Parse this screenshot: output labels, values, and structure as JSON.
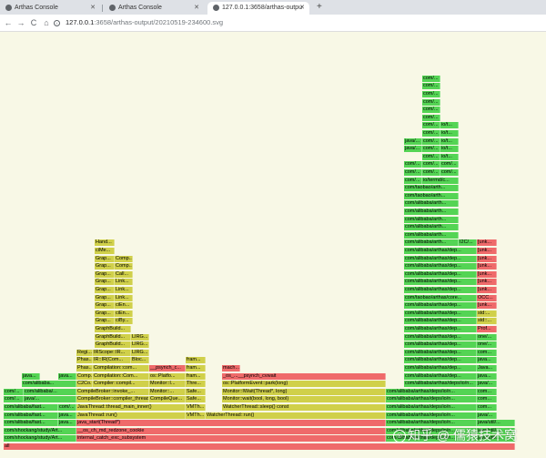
{
  "browser": {
    "tabs": [
      {
        "title": "Arthas Console",
        "active": false
      },
      {
        "title": "Arthas Console",
        "active": false
      },
      {
        "title": "127.0.0.1:3658/arthas-output/20210519-234600.svg",
        "active": true
      }
    ],
    "new_tab": "+",
    "nav": {
      "back": "←",
      "forward": "→",
      "reload": "C",
      "home": "⌂"
    },
    "url_host": "127.0.0.1",
    "url_rest": ":3658/arthas-output/20210519-234600.svg"
  },
  "flamegraph": {
    "colors": {
      "green": "#54d454",
      "yellow": "#d0d04a",
      "red": "#ef6a6a",
      "salmon": "#e06060"
    },
    "frames": [
      {
        "l": "all",
        "c": "red"
      },
      {
        "l": "com/shockang/study/Art...",
        "c": "green"
      },
      {
        "l": "internal_catch_exc_subsystem",
        "c": "red"
      },
      {
        "l": "com/alibaba/arthas/deps/io/n...",
        "c": "green"
      },
      {
        "l": "java/util/...",
        "c": "green"
      },
      {
        "l": "com/shockang/study/Art...",
        "c": "green"
      },
      {
        "l": "__os_ch_md_redzone_cookie",
        "c": "red"
      },
      {
        "l": "com/alibaba/arthas/deps/io/n...",
        "c": "green"
      },
      {
        "l": "java/util/...",
        "c": "green"
      },
      {
        "l": "com/alibaba/fast...",
        "c": "green"
      },
      {
        "l": "java...",
        "c": "green"
      },
      {
        "l": "java_start(Thread*)",
        "c": "red"
      },
      {
        "l": "com/alibaba/arthas/deps/io/n...",
        "c": "green"
      },
      {
        "l": "java/util/...",
        "c": "green"
      },
      {
        "l": "com/alibaba/fast...",
        "c": "green"
      },
      {
        "l": "java...",
        "c": "green"
      },
      {
        "l": "JavaThread::run()",
        "c": "yellow"
      },
      {
        "l": "VMTh...",
        "c": "yellow"
      },
      {
        "l": "WatcherThread::run()",
        "c": "yellow"
      },
      {
        "l": "com/alibaba/arthas/deps/io/n...",
        "c": "green"
      },
      {
        "l": "java/...",
        "c": "green"
      },
      {
        "l": "com/alibaba/fast...",
        "c": "green"
      },
      {
        "l": "com/...",
        "c": "green"
      },
      {
        "l": "JavaThread::thread_main_inner()",
        "c": "yellow"
      },
      {
        "l": "VMTh...",
        "c": "yellow"
      },
      {
        "l": "WatcherThread::sleep() const",
        "c": "yellow"
      },
      {
        "l": "com/alibaba/arthas/deps/io/n...",
        "c": "green"
      },
      {
        "l": "com...",
        "c": "green"
      },
      {
        "l": "com/...",
        "c": "green"
      },
      {
        "l": "java/...",
        "c": "green"
      },
      {
        "l": "CompileBroker::compiler_thread_loo...",
        "c": "yellow"
      },
      {
        "l": "CompileQue...",
        "c": "yellow"
      },
      {
        "l": "Safe...",
        "c": "yellow"
      },
      {
        "l": "Monitor::wait(bool, long, bool)",
        "c": "yellow"
      },
      {
        "l": "com/alibaba/arthas/deps/io/n...",
        "c": "green"
      },
      {
        "l": "com...",
        "c": "green"
      },
      {
        "l": "com/...",
        "c": "green"
      },
      {
        "l": "com/alibaba/...",
        "c": "green"
      },
      {
        "l": "CompileBroker::invoke_...",
        "c": "yellow"
      },
      {
        "l": "Monitor::...",
        "c": "yellow"
      },
      {
        "l": "Safe...",
        "c": "yellow"
      },
      {
        "l": "Monitor::IWait(Thread*, long)",
        "c": "yellow"
      },
      {
        "l": "com/alibaba/arthas/deps/io/n...",
        "c": "green"
      },
      {
        "l": "com...",
        "c": "green"
      },
      {
        "l": "com/alibaba...",
        "c": "green"
      },
      {
        "l": "C2Co...",
        "c": "yellow"
      },
      {
        "l": "Compiler::compil...",
        "c": "yellow"
      },
      {
        "l": "Monitor::I...",
        "c": "yellow"
      },
      {
        "l": "Thre...",
        "c": "yellow"
      },
      {
        "l": "os::PlatformEvent::park(long)",
        "c": "yellow"
      },
      {
        "l": "com/alibaba/arthas/deps/io/n...",
        "c": "green"
      },
      {
        "l": "java/...",
        "c": "green"
      },
      {
        "l": "java...",
        "c": "green"
      },
      {
        "l": "java...",
        "c": "green"
      },
      {
        "l": "Comp...",
        "c": "yellow"
      },
      {
        "l": "Compilation::Com...",
        "c": "yellow"
      },
      {
        "l": "os::Platfo...",
        "c": "yellow"
      },
      {
        "l": "fram...",
        "c": "yellow"
      },
      {
        "l": "_os_...__psynch_cvwait",
        "c": "red"
      },
      {
        "l": "com/alibaba/arthas/dep...",
        "c": "green"
      },
      {
        "l": "java...",
        "c": "green"
      },
      {
        "l": "Phas...",
        "c": "yellow"
      },
      {
        "l": "Compilation::com...",
        "c": "yellow"
      },
      {
        "l": "__psynch_c...",
        "c": "red"
      },
      {
        "l": "fram...",
        "c": "yellow"
      },
      {
        "l": "mach...",
        "c": "red"
      },
      {
        "l": "com/alibaba/arthas/dep...",
        "c": "green"
      },
      {
        "l": "Java...",
        "c": "green"
      },
      {
        "l": "Phas...",
        "c": "yellow"
      },
      {
        "l": "IR::IR(Com...",
        "c": "yellow"
      },
      {
        "l": "Bloc...",
        "c": "yellow"
      },
      {
        "l": "fram...",
        "c": "yellow"
      },
      {
        "l": "com/alibaba/arthas/dep...",
        "c": "green"
      },
      {
        "l": "java...",
        "c": "green"
      },
      {
        "l": "Regi...",
        "c": "yellow"
      },
      {
        "l": "IRScope::IR...",
        "c": "yellow"
      },
      {
        "l": "LIRG...",
        "c": "yellow"
      },
      {
        "l": "com/alibaba/arthas/dep...",
        "c": "green"
      },
      {
        "l": "com...",
        "c": "green"
      },
      {
        "l": "GraphBuild...",
        "c": "yellow"
      },
      {
        "l": "LIRG...",
        "c": "yellow"
      },
      {
        "l": "com/alibaba/arthas/dep...",
        "c": "green"
      },
      {
        "l": "one/...",
        "c": "green"
      },
      {
        "l": "GraphBuild...",
        "c": "yellow"
      },
      {
        "l": "LIRG...",
        "c": "yellow"
      },
      {
        "l": "com/alibaba/arthas/dep...",
        "c": "green"
      },
      {
        "l": "one/...",
        "c": "green"
      },
      {
        "l": "GraphBuild...",
        "c": "yellow"
      },
      {
        "l": "com/alibaba/arthas/dep...",
        "c": "green"
      },
      {
        "l": "Prof...",
        "c": "red"
      },
      {
        "l": "Grap...",
        "c": "yellow"
      },
      {
        "l": "ciBy...",
        "c": "yellow"
      },
      {
        "l": "com/alibaba/arthas/dep...",
        "c": "green"
      },
      {
        "l": "std::...",
        "c": "yellow"
      },
      {
        "l": "Grap...",
        "c": "yellow"
      },
      {
        "l": "ciEn...",
        "c": "yellow"
      },
      {
        "l": "com/alibaba/arthas/dep...",
        "c": "green"
      },
      {
        "l": "std:...",
        "c": "yellow"
      },
      {
        "l": "Grap...",
        "c": "yellow"
      },
      {
        "l": "ciEn...",
        "c": "yellow"
      },
      {
        "l": "com/alibaba/arthas/dep...",
        "c": "green"
      },
      {
        "l": "[unk...",
        "c": "red"
      },
      {
        "l": "Grap...",
        "c": "yellow"
      },
      {
        "l": "Link...",
        "c": "yellow"
      },
      {
        "l": "com/taobao/arthas/core...",
        "c": "green"
      },
      {
        "l": "OCC...",
        "c": "red"
      },
      {
        "l": "Grap...",
        "c": "yellow"
      },
      {
        "l": "Link...",
        "c": "yellow"
      },
      {
        "l": "com/alibaba/arthas/dep...",
        "c": "green"
      },
      {
        "l": "[unk...",
        "c": "red"
      },
      {
        "l": "Grap...",
        "c": "yellow"
      },
      {
        "l": "Link...",
        "c": "yellow"
      },
      {
        "l": "com/alibaba/arthas/dep...",
        "c": "green"
      },
      {
        "l": "[unk...",
        "c": "red"
      },
      {
        "l": "Grap...",
        "c": "yellow"
      },
      {
        "l": "Call...",
        "c": "yellow"
      },
      {
        "l": "com/alibaba/arthas/dep...",
        "c": "green"
      },
      {
        "l": "[unk...",
        "c": "red"
      },
      {
        "l": "Grap...",
        "c": "yellow"
      },
      {
        "l": "Comp...",
        "c": "yellow"
      },
      {
        "l": "com/alibaba/arthas/dep...",
        "c": "green"
      },
      {
        "l": "[unk...",
        "c": "red"
      },
      {
        "l": "Grap...",
        "c": "yellow"
      },
      {
        "l": "Comp...",
        "c": "yellow"
      },
      {
        "l": "com/alibaba/arthas/dep...",
        "c": "green"
      },
      {
        "l": "[unk...",
        "c": "red"
      },
      {
        "l": "ciMe...",
        "c": "yellow"
      },
      {
        "l": "com/alibaba/arthas/dep...",
        "c": "green"
      },
      {
        "l": "[unk...",
        "c": "red"
      },
      {
        "l": "Hand...",
        "c": "yellow"
      },
      {
        "l": "com/alibaba/arth...",
        "c": "green"
      },
      {
        "l": "I2C/...",
        "c": "green"
      },
      {
        "l": "[unk...",
        "c": "red"
      },
      {
        "l": "com/alibaba/arth...",
        "c": "green"
      },
      {
        "l": "com/alibaba/arth...",
        "c": "green"
      },
      {
        "l": "com/alibaba/arth...",
        "c": "green"
      },
      {
        "l": "com/alibaba/arth...",
        "c": "green"
      },
      {
        "l": "com/alibaba/arth...",
        "c": "green"
      },
      {
        "l": "com/taobao/arth...",
        "c": "green"
      },
      {
        "l": "com/taobao/arth...",
        "c": "green"
      },
      {
        "l": "com/...",
        "c": "green"
      },
      {
        "l": "io/termd/c...",
        "c": "green"
      },
      {
        "l": "com/...",
        "c": "green"
      },
      {
        "l": "com/...",
        "c": "green"
      },
      {
        "l": "com/...",
        "c": "green"
      },
      {
        "l": "com/...",
        "c": "green"
      },
      {
        "l": "com/...",
        "c": "green"
      },
      {
        "l": "com/...",
        "c": "green"
      },
      {
        "l": "com/...",
        "c": "green"
      },
      {
        "l": "io/t...",
        "c": "green"
      },
      {
        "l": "java/...",
        "c": "green"
      },
      {
        "l": "com/...",
        "c": "green"
      },
      {
        "l": "io/t...",
        "c": "green"
      },
      {
        "l": "java/...",
        "c": "green"
      },
      {
        "l": "com/...",
        "c": "green"
      },
      {
        "l": "io/t...",
        "c": "green"
      },
      {
        "l": "com/...",
        "c": "green"
      },
      {
        "l": "io/t...",
        "c": "green"
      },
      {
        "l": "com/...",
        "c": "green"
      },
      {
        "l": "io/t...",
        "c": "green"
      },
      {
        "l": "com/...",
        "c": "green"
      },
      {
        "l": "com/...",
        "c": "green"
      },
      {
        "l": "com/...",
        "c": "green"
      },
      {
        "l": "com/...",
        "c": "green"
      },
      {
        "l": "com/...",
        "c": "green"
      },
      {
        "l": "com/...",
        "c": "green"
      }
    ]
  },
  "watermark": "知乎 @ 儒猿技术窝"
}
